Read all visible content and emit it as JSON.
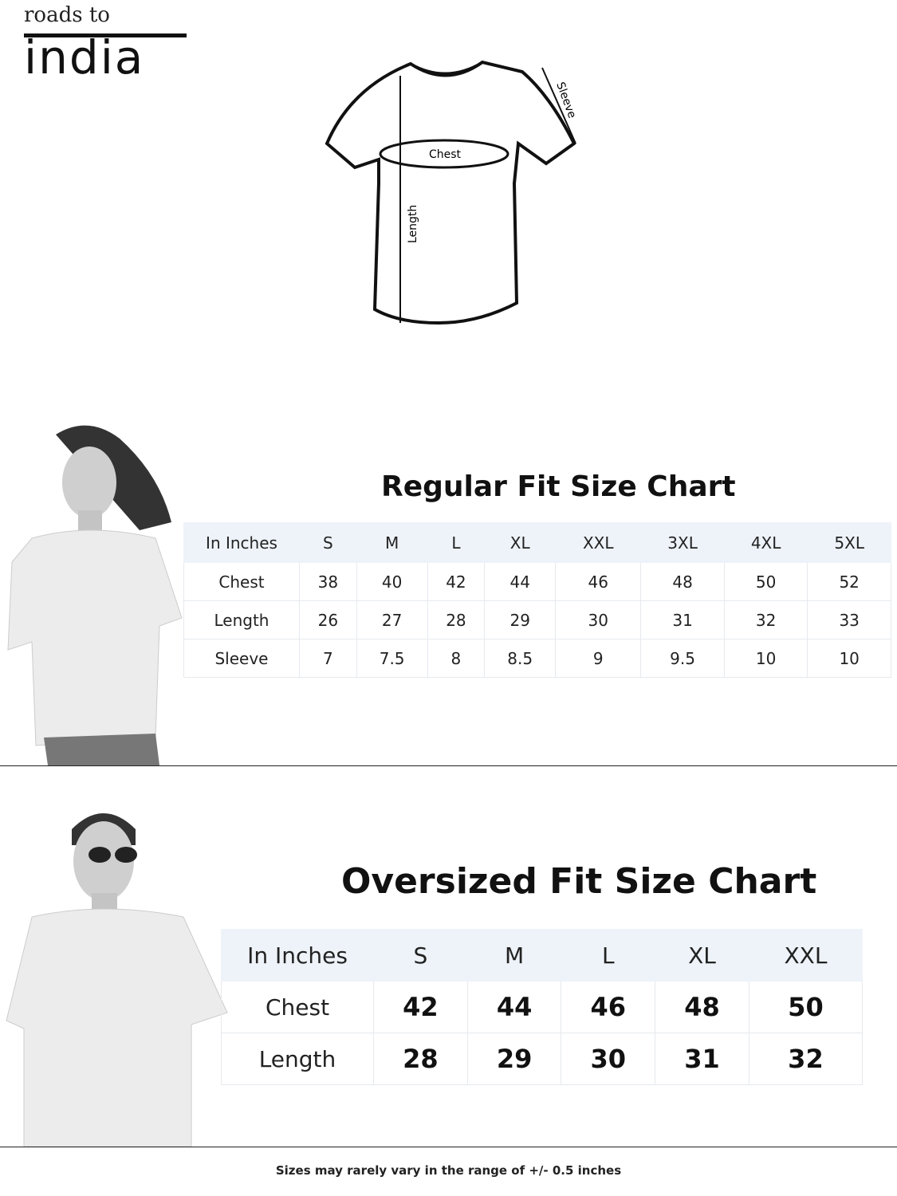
{
  "logo": {
    "top_text": "roads to",
    "big_text": "india"
  },
  "diagram": {
    "labels": {
      "chest": "Chest",
      "length": "Length",
      "sleeve": "Sleeve"
    }
  },
  "regular": {
    "title": "Regular Fit Size Chart",
    "header": [
      "In Inches",
      "S",
      "M",
      "L",
      "XL",
      "XXL",
      "3XL",
      "4XL",
      "5XL"
    ],
    "rows": [
      {
        "label": "Chest",
        "values": [
          "38",
          "40",
          "42",
          "44",
          "46",
          "48",
          "50",
          "52"
        ]
      },
      {
        "label": "Length",
        "values": [
          "26",
          "27",
          "28",
          "29",
          "30",
          "31",
          "32",
          "33"
        ]
      },
      {
        "label": "Sleeve",
        "values": [
          "7",
          "7.5",
          "8",
          "8.5",
          "9",
          "9.5",
          "10",
          "10"
        ]
      }
    ]
  },
  "oversized": {
    "title": "Oversized Fit Size Chart",
    "header": [
      "In Inches",
      "S",
      "M",
      "L",
      "XL",
      "XXL"
    ],
    "rows": [
      {
        "label": "Chest",
        "values": [
          "42",
          "44",
          "46",
          "48",
          "50"
        ]
      },
      {
        "label": "Length",
        "values": [
          "28",
          "29",
          "30",
          "31",
          "32"
        ]
      }
    ]
  },
  "footer": "Sizes may rarely vary in the range of +/- 0.5 inches"
}
